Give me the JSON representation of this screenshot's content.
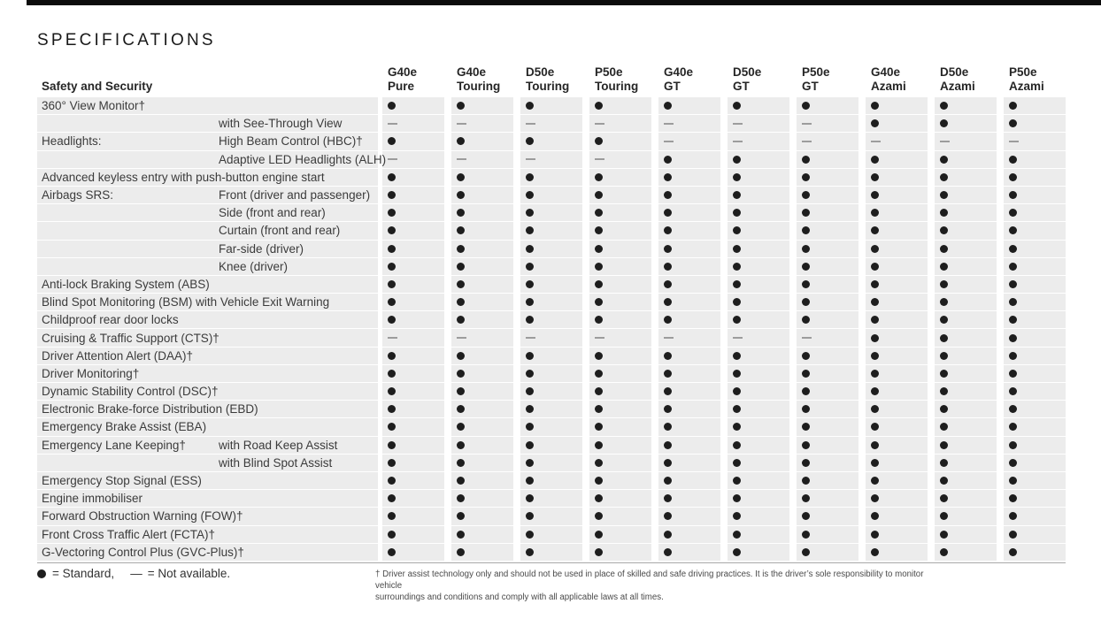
{
  "page": {
    "title": "SPECIFICATIONS",
    "legend": {
      "standard_symbol": "●",
      "standard_text": "= Standard,",
      "na_symbol": "—",
      "na_text": "= Not available."
    },
    "footnote": {
      "line1": "† Driver assist technology only and should not be used in place of skilled and safe driving practices. It is the driver’s sole responsibility to monitor vehicle",
      "line2": "surroundings and conditions and comply with all applicable laws at all times."
    }
  },
  "colors": {
    "row_band": "#ececec",
    "standard_dot": "#1e1e1e",
    "not_available_dash": "#9c9c9c",
    "top_bar": "#0c0c0c"
  },
  "table": {
    "section_header": "Safety and Security",
    "symbols": {
      "standard": "●",
      "not_available": "—"
    },
    "columns": [
      {
        "model": "G40e",
        "trim": "Pure"
      },
      {
        "model": "G40e",
        "trim": "Touring"
      },
      {
        "model": "D50e",
        "trim": "Touring"
      },
      {
        "model": "P50e",
        "trim": "Touring"
      },
      {
        "model": "G40e",
        "trim": "GT"
      },
      {
        "model": "D50e",
        "trim": "GT"
      },
      {
        "model": "P50e",
        "trim": "GT"
      },
      {
        "model": "G40e",
        "trim": "Azami"
      },
      {
        "model": "D50e",
        "trim": "Azami"
      },
      {
        "model": "P50e",
        "trim": "Azami"
      }
    ],
    "rows": [
      {
        "label": "360° View Monitor†",
        "sublabel": "",
        "values": "●●●●●●●●●●"
      },
      {
        "label": "",
        "sublabel": "with See-Through View",
        "values": "———————●●●"
      },
      {
        "label": "Headlights:",
        "sublabel": "High Beam Control (HBC)†",
        "values": "●●●●——————"
      },
      {
        "label": "",
        "sublabel": "Adaptive LED Headlights (ALH)",
        "values": "————●●●●●●"
      },
      {
        "label": "Advanced keyless entry with push-button engine start",
        "sublabel": "",
        "values": "●●●●●●●●●●"
      },
      {
        "label": "Airbags SRS:",
        "sublabel": "Front (driver and passenger)",
        "values": "●●●●●●●●●●"
      },
      {
        "label": "",
        "sublabel": "Side (front and rear)",
        "values": "●●●●●●●●●●"
      },
      {
        "label": "",
        "sublabel": "Curtain (front and rear)",
        "values": "●●●●●●●●●●"
      },
      {
        "label": "",
        "sublabel": "Far-side (driver)",
        "values": "●●●●●●●●●●"
      },
      {
        "label": "",
        "sublabel": "Knee (driver)",
        "values": "●●●●●●●●●●"
      },
      {
        "label": "Anti-lock Braking System (ABS)",
        "sublabel": "",
        "values": "●●●●●●●●●●"
      },
      {
        "label": "Blind Spot Monitoring (BSM) with Vehicle Exit Warning",
        "sublabel": "",
        "values": "●●●●●●●●●●"
      },
      {
        "label": "Childproof rear door locks",
        "sublabel": "",
        "values": "●●●●●●●●●●"
      },
      {
        "label": "Cruising & Traffic Support (CTS)†",
        "sublabel": "",
        "values": "———————●●●"
      },
      {
        "label": "Driver Attention Alert (DAA)†",
        "sublabel": "",
        "values": "●●●●●●●●●●"
      },
      {
        "label": "Driver Monitoring†",
        "sublabel": "",
        "values": "●●●●●●●●●●"
      },
      {
        "label": "Dynamic Stability Control (DSC)†",
        "sublabel": "",
        "values": "●●●●●●●●●●"
      },
      {
        "label": "Electronic Brake-force Distribution (EBD)",
        "sublabel": "",
        "values": "●●●●●●●●●●"
      },
      {
        "label": "Emergency Brake Assist (EBA)",
        "sublabel": "",
        "values": "●●●●●●●●●●"
      },
      {
        "label": "Emergency Lane Keeping†",
        "sublabel": "with Road Keep Assist",
        "values": "●●●●●●●●●●"
      },
      {
        "label": "",
        "sublabel": "with Blind Spot Assist",
        "values": "●●●●●●●●●●"
      },
      {
        "label": "Emergency Stop Signal (ESS)",
        "sublabel": "",
        "values": "●●●●●●●●●●"
      },
      {
        "label": "Engine immobiliser",
        "sublabel": "",
        "values": "●●●●●●●●●●"
      },
      {
        "label": "Forward Obstruction Warning (FOW)†",
        "sublabel": "",
        "values": "●●●●●●●●●●"
      },
      {
        "label": "Front Cross Traffic Alert (FCTA)†",
        "sublabel": "",
        "values": "●●●●●●●●●●"
      },
      {
        "label": "G-Vectoring Control Plus (GVC-Plus)†",
        "sublabel": "",
        "values": "●●●●●●●●●●"
      }
    ]
  }
}
